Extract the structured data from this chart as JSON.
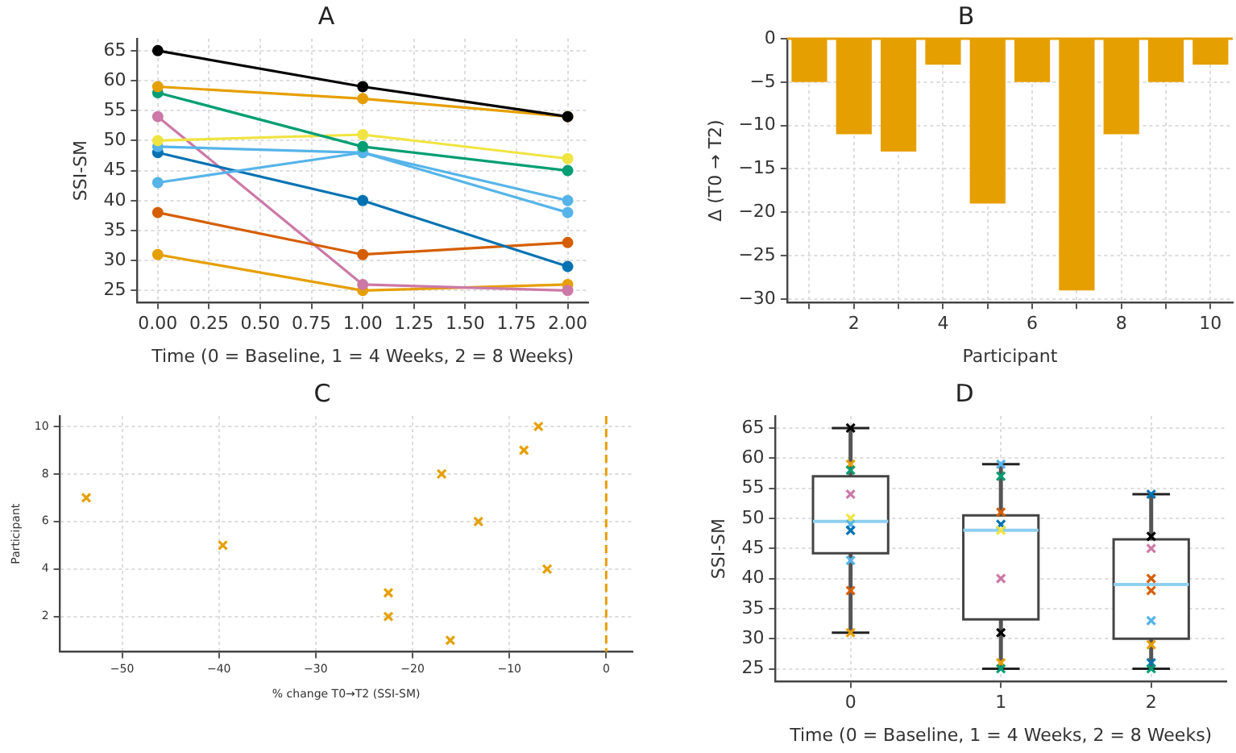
{
  "chart_data": [
    {
      "type": "line",
      "title": "A",
      "xlabel": "Time (0 = Baseline, 1 = 4 Weeks, 2 = 8 Weeks)",
      "ylabel": "SSI-SM",
      "x": [
        0,
        1,
        2
      ],
      "marker": "circle",
      "line_style": "solid",
      "grid": true,
      "legend": false,
      "xlim": [
        -0.1,
        2.1
      ],
      "xticks": [
        {
          "value": 0,
          "label": "0.00"
        },
        {
          "value": 0.25,
          "label": "0.25"
        },
        {
          "value": 0.5,
          "label": "0.50"
        },
        {
          "value": 0.75,
          "label": "0.75"
        },
        {
          "value": 1,
          "label": "1.00"
        },
        {
          "value": 1.25,
          "label": "1.25"
        },
        {
          "value": 1.5,
          "label": "1.50"
        },
        {
          "value": 1.75,
          "label": "1.75"
        },
        {
          "value": 2,
          "label": "2.00"
        }
      ],
      "ylim": [
        23,
        67
      ],
      "yticks": [
        25,
        30,
        35,
        40,
        45,
        50,
        55,
        60,
        65
      ],
      "series": [
        {
          "color": "#000000",
          "values": [
            65,
            59,
            54
          ]
        },
        {
          "color": "#e69f00",
          "values": [
            59,
            57,
            54
          ]
        },
        {
          "color": "#009e73",
          "values": [
            58,
            49,
            45
          ]
        },
        {
          "color": "#f0e442",
          "values": [
            50,
            51,
            47
          ]
        },
        {
          "color": "#56b4e9",
          "values": [
            49,
            48,
            38
          ]
        },
        {
          "color": "#56b4e9",
          "values": [
            43,
            48,
            40
          ]
        },
        {
          "color": "#0072b2",
          "values": [
            48,
            40,
            29
          ]
        },
        {
          "color": "#d55e00",
          "values": [
            38,
            31,
            33
          ]
        },
        {
          "color": "#cc79a7",
          "values": [
            54,
            26,
            25
          ]
        },
        {
          "color": "#e69f00",
          "values": [
            31,
            25,
            26
          ]
        }
      ]
    },
    {
      "type": "bar",
      "title": "B",
      "xlabel": "Participant",
      "ylabel": "Δ (T0 → T2)",
      "grid": true,
      "legend": false,
      "categories": [
        null,
        "2",
        null,
        "4",
        null,
        "6",
        null,
        "8",
        null,
        "10"
      ],
      "values": [
        -5,
        -11,
        -13,
        -3,
        -19,
        -5,
        -29,
        -11,
        -5,
        -3
      ],
      "color": "#e69f00",
      "ylim": [
        -30.4,
        0
      ],
      "yticks": [
        {
          "value": -30,
          "label": "−30"
        },
        {
          "value": -25,
          "label": "−25"
        },
        {
          "value": -20,
          "label": "−20"
        },
        {
          "value": -15,
          "label": "−15"
        },
        {
          "value": -10,
          "label": "−10"
        },
        {
          "value": -5,
          "label": "−5"
        },
        0
      ],
      "ref_lines": [
        {
          "axis": "y",
          "value": 0,
          "color": "#e69f00",
          "line_style": "solid"
        }
      ]
    },
    {
      "type": "scatter",
      "title": "C",
      "xlabel": "% change T0→T2 (SSI-SM)",
      "ylabel": "Participant",
      "marker": "cross",
      "grid": true,
      "legend": false,
      "x": [
        -16.1,
        -22.5,
        -22.5,
        -6.1,
        -39.6,
        -13.2,
        -53.7,
        -17.0,
        -8.5,
        -7.0
      ],
      "values": [
        1,
        2,
        3,
        4,
        5,
        6,
        7,
        8,
        9,
        10
      ],
      "color": "#e69f00",
      "xlim": [
        -56.4,
        2.7
      ],
      "xticks": [
        {
          "value": -50,
          "label": "−50"
        },
        {
          "value": -40,
          "label": "−40"
        },
        {
          "value": -30,
          "label": "−30"
        },
        {
          "value": -20,
          "label": "−20"
        },
        {
          "value": -10,
          "label": "−10"
        },
        0
      ],
      "ylim": [
        0.52,
        10.44
      ],
      "yticks": [
        2,
        4,
        6,
        8,
        10
      ],
      "ref_lines": [
        {
          "axis": "x",
          "value": 0,
          "color": "#e69f00",
          "line_style": "dashed"
        }
      ]
    },
    {
      "type": "box",
      "title": "D",
      "xlabel": "Time (0 = Baseline, 1 = 4 Weeks, 2 = 8 Weeks)",
      "ylabel": "SSI-SM",
      "grid": true,
      "legend": false,
      "categories": [
        "0",
        "1",
        "2"
      ],
      "boxes": [
        {
          "low": 31,
          "q1": 44.2,
          "median": 49.5,
          "q3": 57,
          "high": 65
        },
        {
          "low": 25,
          "q1": 33.2,
          "median": 48,
          "q3": 50.5,
          "high": 59
        },
        {
          "low": 25,
          "q1": 30,
          "median": 39,
          "q3": 46.5,
          "high": 54
        }
      ],
      "ylim": [
        22.9,
        67
      ],
      "yticks": [
        25,
        30,
        35,
        40,
        45,
        50,
        55,
        60,
        65
      ],
      "series": [
        {
          "type": "scatter",
          "marker": "cross",
          "x": [
            "0",
            "0",
            "0",
            "0",
            "0",
            "0",
            "0",
            "0",
            "0",
            "0",
            "1",
            "1",
            "1",
            "1",
            "1",
            "1",
            "1",
            "1",
            "1",
            "2",
            "2",
            "2",
            "2",
            "2",
            "2",
            "2",
            "2",
            "2"
          ],
          "values": [
            65,
            59,
            58,
            54,
            50,
            49,
            48,
            43,
            38,
            31,
            59,
            57,
            51,
            49,
            48,
            40,
            31,
            26,
            25,
            54,
            47,
            45,
            40,
            38,
            33,
            29,
            26,
            25
          ],
          "colors": [
            "#000000",
            "#e69f00",
            "#009e73",
            "#cc79a7",
            "#f0e442",
            "#56b4e9",
            "#0072b2",
            "#56b4e9",
            "#d55e00",
            "#e69f00",
            "#56b4e9",
            "#009e73",
            "#d55e00",
            "#0072b2",
            "#f0e442",
            "#cc79a7",
            "#000000",
            "#e69f00",
            "#009e73",
            "#0072b2",
            "#000000",
            "#cc79a7",
            "#d55e00",
            "#d55e00",
            "#56b4e9",
            "#e69f00",
            "#0072b2",
            "#009e73"
          ]
        }
      ]
    }
  ]
}
